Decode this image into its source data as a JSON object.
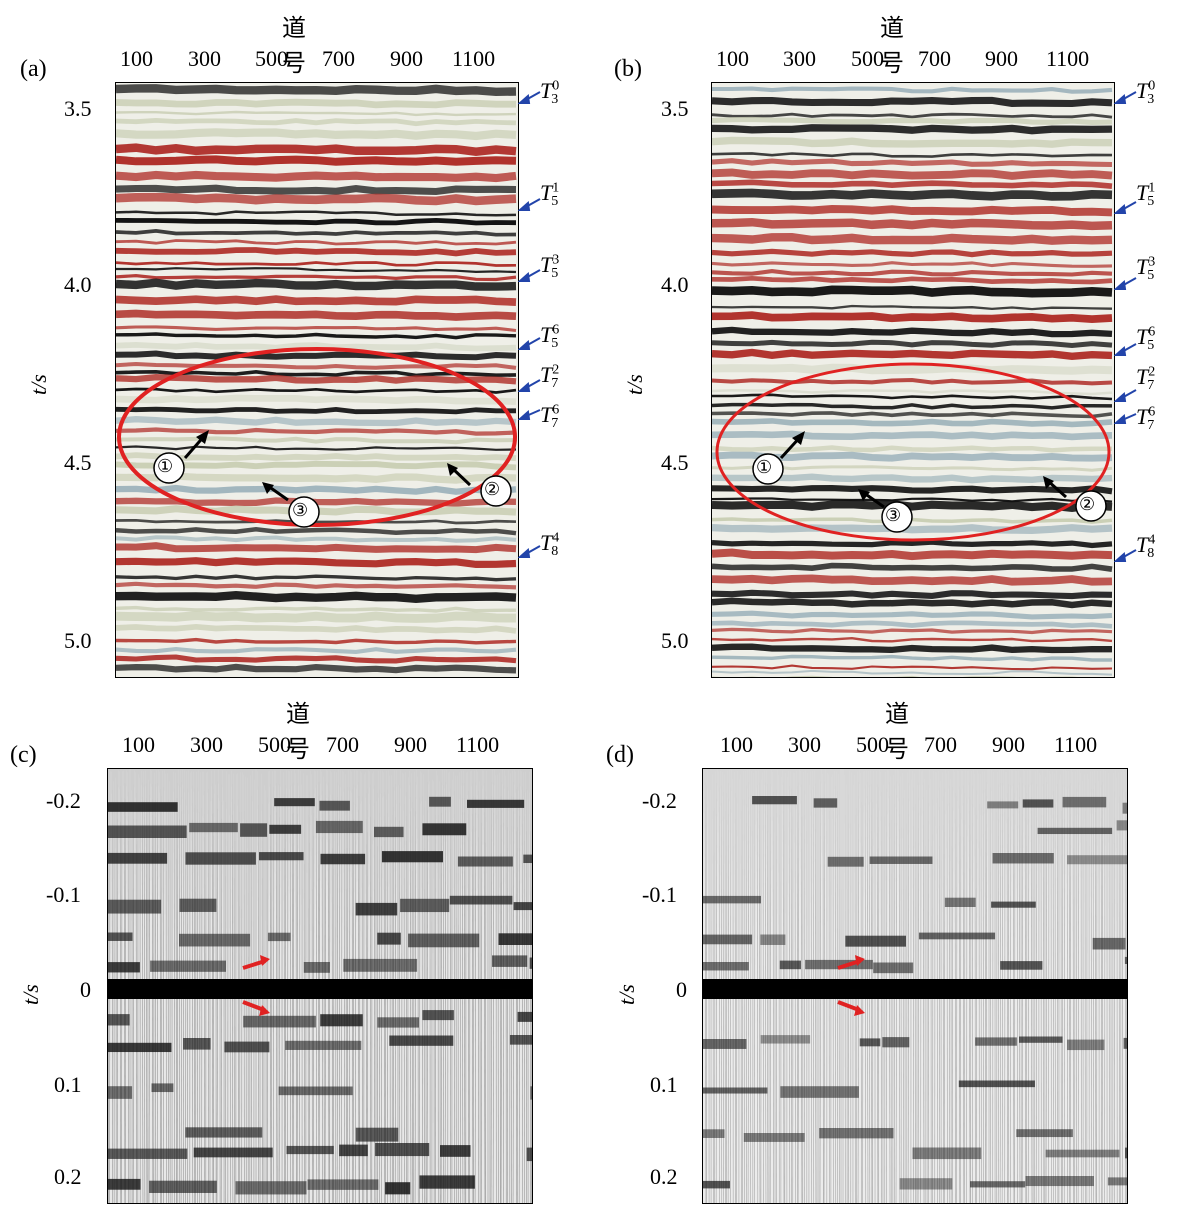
{
  "x_title": "道号",
  "x_ticks": [
    "100",
    "300",
    "500",
    "700",
    "900",
    "1100"
  ],
  "y_title": "t/s",
  "top_y_ticks": [
    "3.5",
    "4.0",
    "4.5",
    "5.0"
  ],
  "bottom_y_ticks": [
    "-0.2",
    "-0.1",
    "0",
    "0.1",
    "0.2"
  ],
  "panels": {
    "a": {
      "label": "(a)"
    },
    "b": {
      "label": "(b)"
    },
    "c": {
      "label": "(c)"
    },
    "d": {
      "label": "(d)"
    }
  },
  "horizons": [
    {
      "base": "T",
      "sub": "3",
      "sup": "0"
    },
    {
      "base": "T",
      "sub": "5",
      "sup": "1"
    },
    {
      "base": "T",
      "sub": "5",
      "sup": "3"
    },
    {
      "base": "T",
      "sub": "5",
      "sup": "6"
    },
    {
      "base": "T",
      "sub": "7",
      "sup": "2"
    },
    {
      "base": "T",
      "sub": "7",
      "sup": "6"
    },
    {
      "base": "T",
      "sub": "8",
      "sup": "4"
    }
  ],
  "markers": [
    "①",
    "②",
    "③"
  ],
  "colors": {
    "seismic_red": "#b0322c",
    "seismic_black": "#111111",
    "ellipse": "#e02222",
    "horizon_arrow": "#2244aa",
    "arrow_red": "#e02222"
  }
}
